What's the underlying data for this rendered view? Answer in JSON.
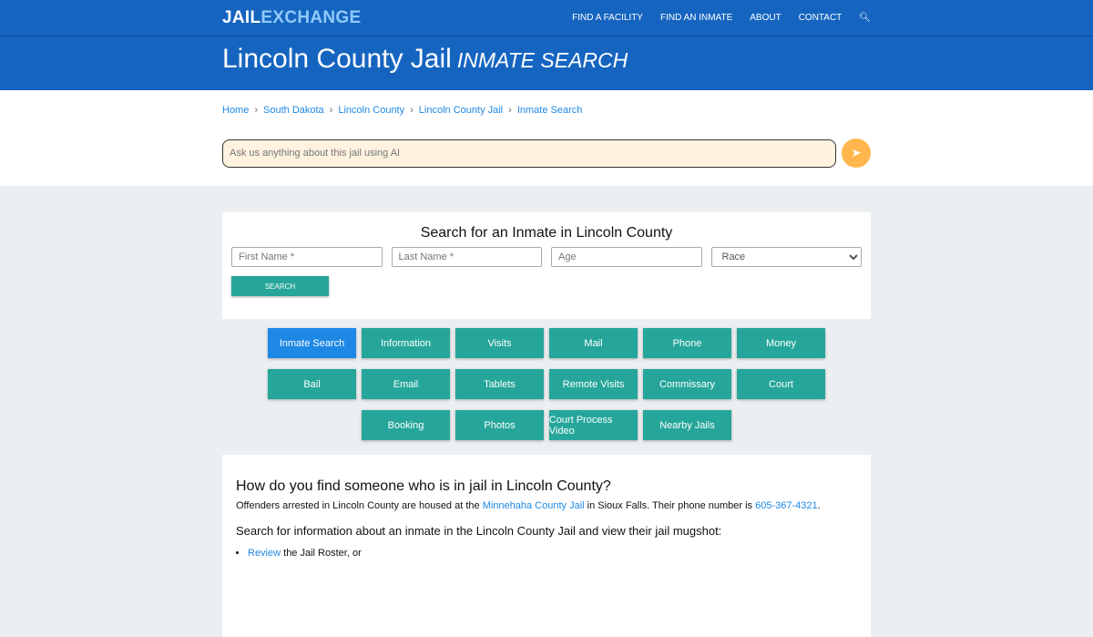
{
  "nav": {
    "logo_a": "JAIL",
    "logo_b": "EXCHANGE",
    "items": [
      "FIND A FACILITY",
      "FIND AN INMATE",
      "ABOUT",
      "CONTACT"
    ],
    "search_icon": "search-icon"
  },
  "header": {
    "title": "Lincoln County Jail",
    "subtitle": "INMATE SEARCH"
  },
  "breadcrumb": [
    "Home",
    "South Dakota",
    "Lincoln County",
    "Lincoln County Jail",
    "Inmate Search"
  ],
  "ai": {
    "placeholder": "Ask us anything about this jail using AI",
    "icon": "send-icon"
  },
  "search": {
    "title": "Search for an Inmate in Lincoln County",
    "first": "First Name *",
    "last": "Last Name *",
    "age": "Age",
    "race": "Race",
    "button": "SEARCH"
  },
  "tabs": [
    "Inmate Search",
    "Information",
    "Visits",
    "Mail",
    "Phone",
    "Money",
    "Bail",
    "Email",
    "Tablets",
    "Remote Visits",
    "Commissary",
    "Court",
    "Booking",
    "Photos",
    "Court Process Video",
    "Nearby Jails"
  ],
  "content": {
    "heading": "How do you find someone who is in jail in Lincoln County?",
    "p1a": "Offenders arrested in Lincoln County are housed at the ",
    "p1link": "Minnehaha County Jail",
    "p1b": " in Sioux Falls. Their phone number is ",
    "phone": "605-367-4321",
    "p1c": ".",
    "h4": "Search for information about an inmate in the Lincoln County Jail and view their jail mugshot:",
    "li1link": "Review",
    "li1": " the Jail Roster, or"
  },
  "colors": {
    "primary": "#1565c0",
    "teal": "#26a69a",
    "active": "#1e88e5"
  }
}
